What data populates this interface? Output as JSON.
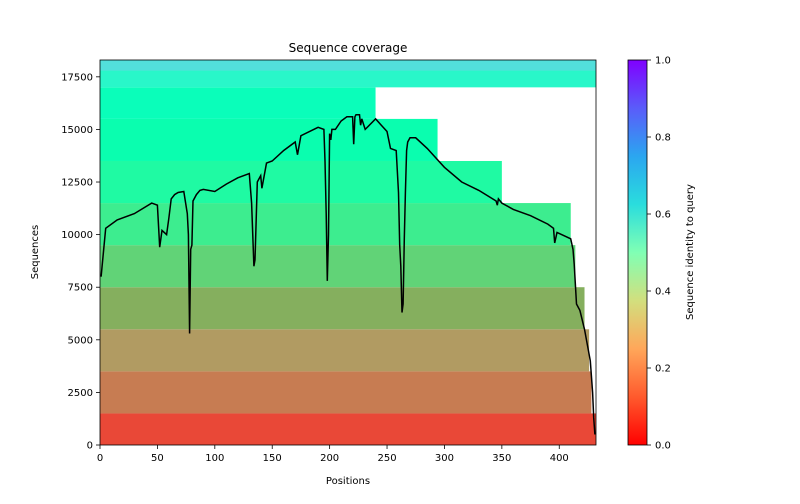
{
  "chart_data": {
    "type": "heatmap",
    "title": "Sequence coverage",
    "xlabel": "Positions",
    "ylabel": "Sequences",
    "xlim": [
      0,
      432
    ],
    "ylim": [
      0,
      18300
    ],
    "xticks": [
      0,
      50,
      100,
      150,
      200,
      250,
      300,
      350,
      400
    ],
    "yticks": [
      0,
      2500,
      5000,
      7500,
      10000,
      12500,
      15000,
      17500
    ],
    "colorbar": {
      "label": "Sequence identity to query",
      "range": [
        0.0,
        1.0
      ],
      "ticks": [
        "0.0",
        "0.2",
        "0.4",
        "0.6",
        "0.8",
        "1.0"
      ],
      "colormap": "rainbow_r"
    },
    "identity_bands": [
      {
        "from": 0,
        "to": 1500,
        "identity": 0.05
      },
      {
        "from": 1500,
        "to": 3500,
        "identity": 0.13
      },
      {
        "from": 3500,
        "to": 5500,
        "identity": 0.18
      },
      {
        "from": 5500,
        "to": 7500,
        "identity": 0.24
      },
      {
        "from": 7500,
        "to": 9500,
        "identity": 0.31
      },
      {
        "from": 9500,
        "to": 11500,
        "identity": 0.38
      },
      {
        "from": 11500,
        "to": 13500,
        "identity": 0.44
      },
      {
        "from": 13500,
        "to": 15500,
        "identity": 0.48
      },
      {
        "from": 15500,
        "to": 17000,
        "identity": 0.52
      },
      {
        "from": 17000,
        "to": 17800,
        "identity": 0.58
      },
      {
        "from": 17800,
        "to": 18300,
        "identity": 0.66
      }
    ],
    "series": [
      {
        "type": "line",
        "color": "#000000",
        "x": [
          1,
          5,
          15,
          30,
          45,
          50,
          52,
          54,
          58,
          60,
          62,
          65,
          68,
          73,
          76,
          77,
          78,
          79,
          80,
          81,
          84,
          87,
          90,
          100,
          110,
          120,
          130,
          132,
          134,
          135,
          137,
          140,
          141,
          145,
          150,
          160,
          170,
          172,
          175,
          190,
          195,
          196,
          197,
          198,
          199,
          200,
          201,
          202,
          205,
          210,
          215,
          220,
          221,
          222,
          223,
          226,
          227,
          228,
          231,
          240,
          245,
          250,
          253,
          258,
          260,
          261,
          262,
          263,
          264,
          265,
          266,
          267,
          268,
          270,
          275,
          285,
          300,
          315,
          330,
          345,
          346,
          347,
          350,
          360,
          375,
          390,
          395,
          396,
          398,
          402,
          410,
          412,
          413,
          415,
          418,
          422,
          427,
          429,
          430,
          431
        ],
        "y": [
          8000,
          10300,
          10700,
          11000,
          11500,
          11400,
          9400,
          10200,
          10000,
          10800,
          11700,
          11900,
          12000,
          12050,
          11000,
          10000,
          5300,
          9300,
          9500,
          11600,
          11900,
          12100,
          12150,
          12050,
          12400,
          12700,
          12900,
          11500,
          8500,
          8800,
          12500,
          12800,
          12200,
          13400,
          13500,
          14000,
          14400,
          13800,
          14700,
          15100,
          15000,
          13500,
          11000,
          7800,
          10000,
          14800,
          14500,
          15000,
          15000,
          15400,
          15600,
          15600,
          14300,
          15600,
          15700,
          15700,
          15200,
          15500,
          15000,
          15500,
          15200,
          14900,
          14100,
          14000,
          12000,
          9500,
          8500,
          6300,
          6700,
          9800,
          12000,
          14000,
          14400,
          14600,
          14600,
          14100,
          13200,
          12500,
          12100,
          11600,
          11400,
          11700,
          11500,
          11200,
          10900,
          10500,
          10300,
          9600,
          10100,
          10000,
          9800,
          9300,
          8600,
          6700,
          6400,
          5500,
          4000,
          2500,
          1300,
          500
        ]
      }
    ]
  }
}
